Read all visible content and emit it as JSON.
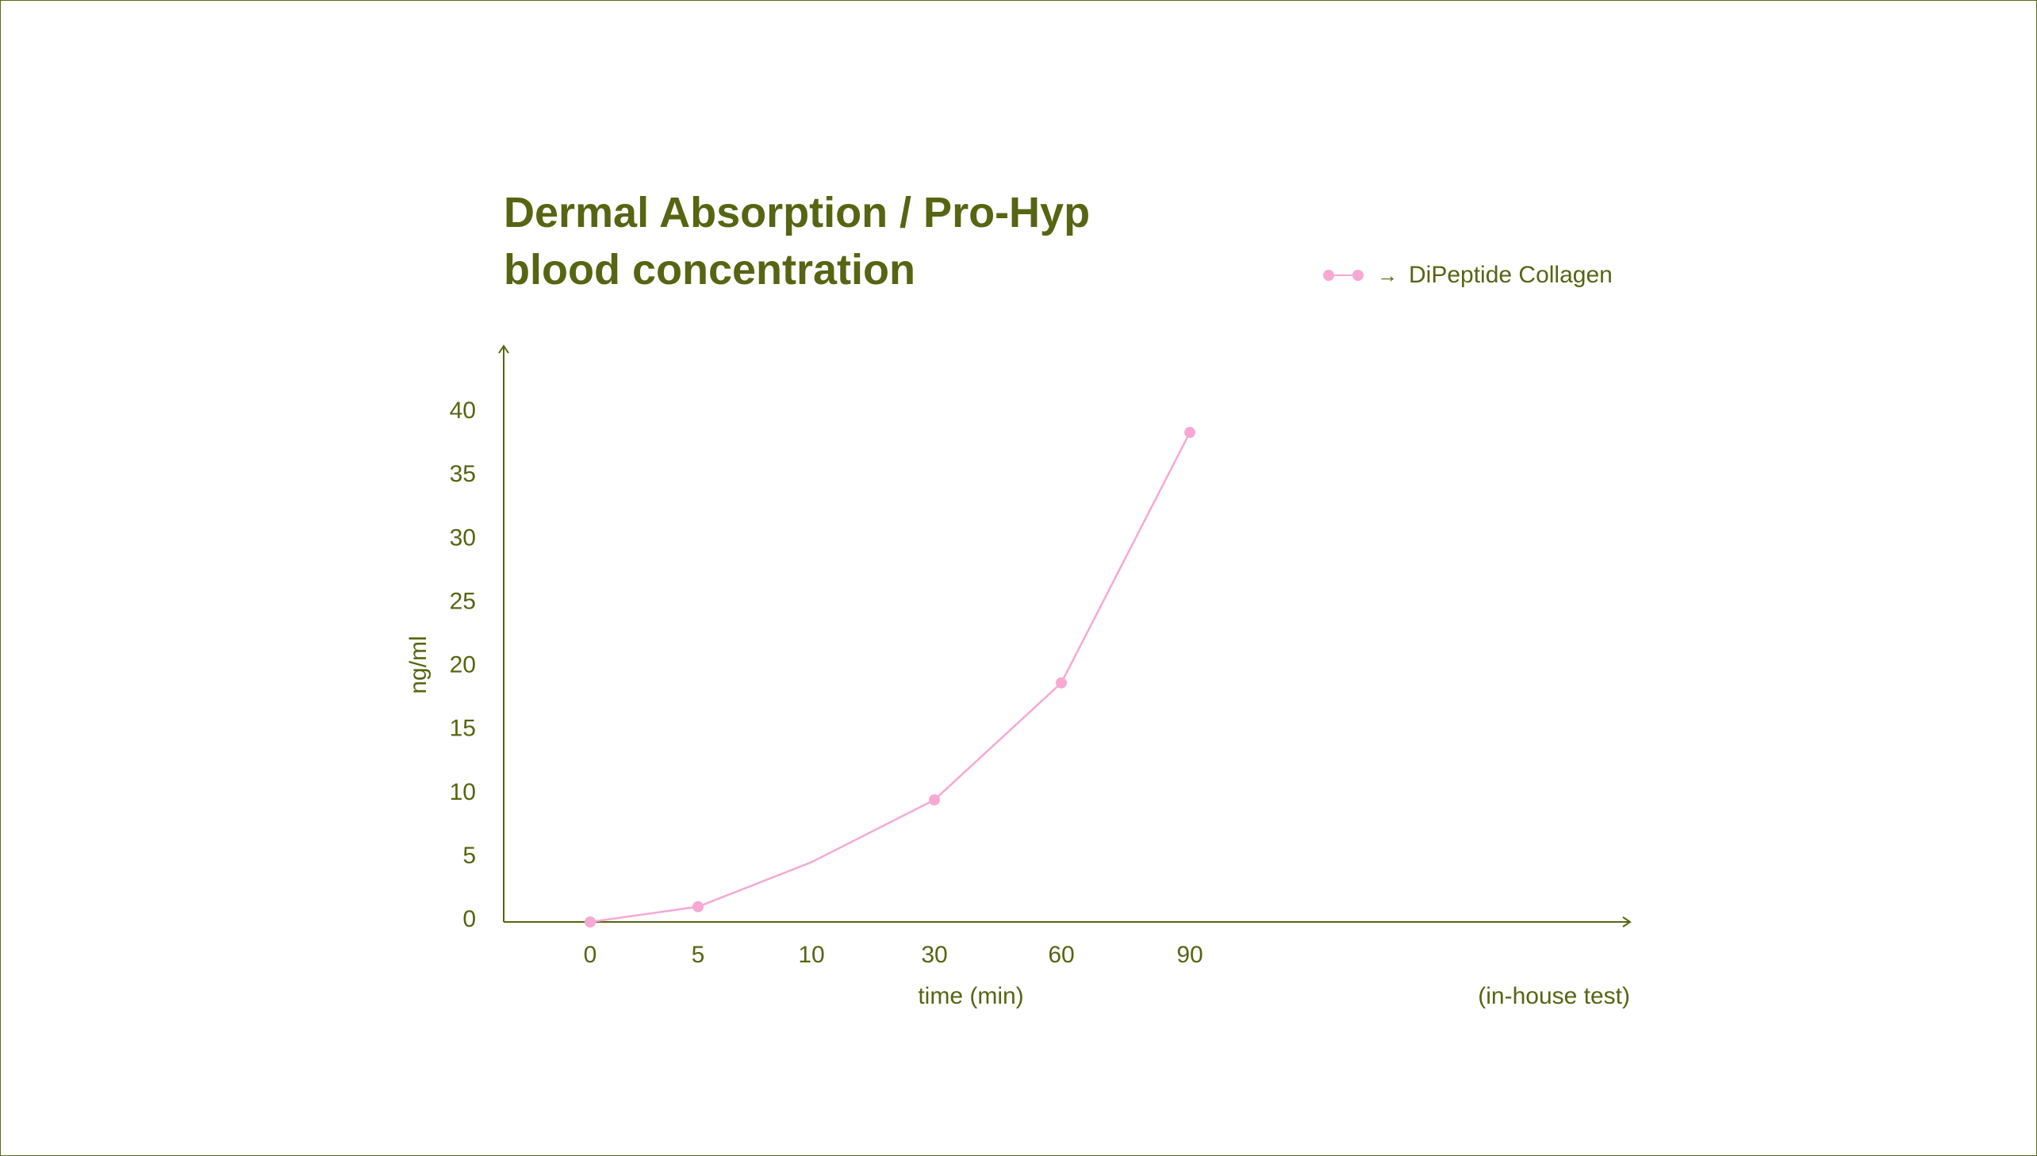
{
  "colors": {
    "accent": "#566512",
    "series": "#f7a8d3"
  },
  "chart_data": {
    "type": "line",
    "title_lines": [
      "Dermal Absorption / Pro-Hyp",
      "blood concentration"
    ],
    "xlabel": "time (min)",
    "ylabel": "ng/ml",
    "note": "(in-house test)",
    "categories": [
      "0",
      "5",
      "10",
      "30",
      "60",
      "90"
    ],
    "yticks": [
      "0",
      "5",
      "10",
      "15",
      "20",
      "25",
      "30",
      "35",
      "40"
    ],
    "ylim": [
      0,
      40
    ],
    "grid": false,
    "legend_position": "top-right",
    "series": [
      {
        "name": "DiPeptide Collagen",
        "values": [
          0,
          1.2,
          4.7,
          9.6,
          18.8,
          38.5
        ],
        "markers": [
          true,
          true,
          false,
          true,
          true,
          true
        ]
      }
    ]
  },
  "legend": {
    "label": "DiPeptide Collagen",
    "arrow": "→"
  }
}
